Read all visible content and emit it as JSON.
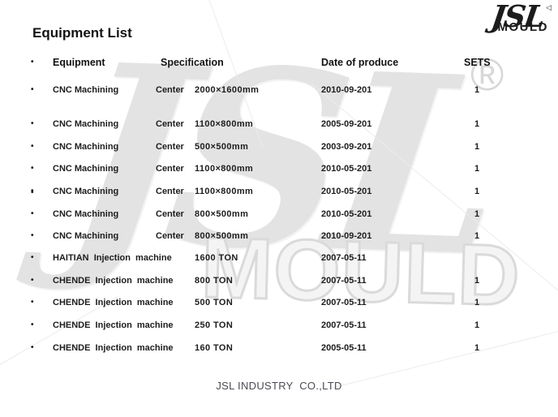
{
  "page": {
    "title": "Equipment List",
    "footer": "JSL INDUSTRY  CO.,LTD"
  },
  "logo": {
    "script": "JSL",
    "word": "MOULD",
    "mark": "◁"
  },
  "watermark": {
    "script": "JSL",
    "word": "MOULD",
    "registered": "®"
  },
  "table": {
    "bullet": "•",
    "headers": {
      "equipment": "Equipment",
      "specification": "Specification",
      "date": "Date of produce",
      "sets": "SETS"
    },
    "rows": [
      {
        "equipment": "CNC Machining",
        "spec_label": "Center",
        "spec_value": "2000×1600mm",
        "date": "2010-09-201",
        "sets": "1"
      },
      {
        "equipment": "CNC Machining",
        "spec_label": "Center",
        "spec_value": "1100×800mm",
        "date": "2005-09-201",
        "sets": "1"
      },
      {
        "equipment": "CNC Machining",
        "spec_label": "Center",
        "spec_value": "500×500mm",
        "date": "2003-09-201",
        "sets": "1"
      },
      {
        "equipment": "CNC Machining",
        "spec_label": "Center",
        "spec_value": "1100×800mm",
        "date": "2010-05-201",
        "sets": "1"
      },
      {
        "equipment": "CNC Machining",
        "spec_label": "Center",
        "spec_value": "1100×800mm",
        "date": "2010-05-201",
        "sets": "1"
      },
      {
        "equipment": "CNC Machining",
        "spec_label": "Center",
        "spec_value": "800×500mm",
        "date": "2010-05-201",
        "sets": "1"
      },
      {
        "equipment": "CNC Machining",
        "spec_label": "Center",
        "spec_value": "800×500mm",
        "date": "2010-09-201",
        "sets": "1"
      },
      {
        "equipment": "HAITIAN  Injection  machine",
        "spec_label": "",
        "spec_value": "1600 TON",
        "date": "2007-05-11",
        "sets": ""
      },
      {
        "equipment": "CHENDE  Injection  machine",
        "spec_label": "",
        "spec_value": "800 TON",
        "date": "2007-05-11",
        "sets": "1"
      },
      {
        "equipment": "CHENDE  Injection  machine",
        "spec_label": "",
        "spec_value": "500 TON",
        "date": "2007-05-11",
        "sets": "1"
      },
      {
        "equipment": "CHENDE  Injection  machine",
        "spec_label": "",
        "spec_value": "250 TON",
        "date": "2007-05-11",
        "sets": "1"
      },
      {
        "equipment": "CHENDE  Injection  machine",
        "spec_label": "",
        "spec_value": "160 TON",
        "date": "2005-05-11",
        "sets": "1"
      }
    ]
  }
}
